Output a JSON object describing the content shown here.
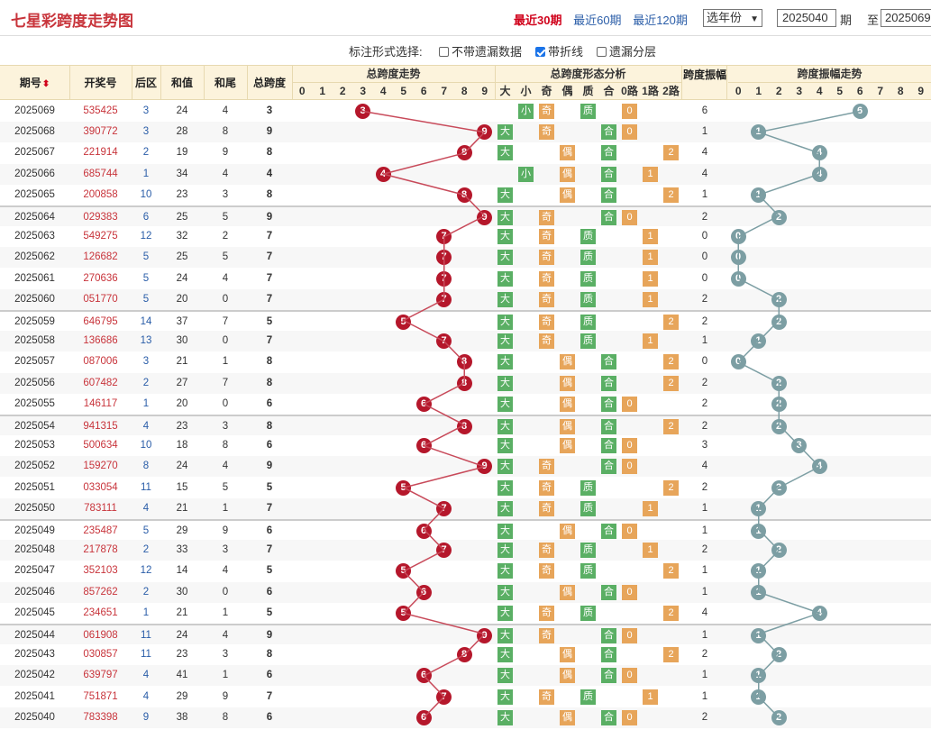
{
  "page_title": "七星彩跨度走势图",
  "period_links": [
    {
      "label": "最近30期",
      "active": true
    },
    {
      "label": "最近60期",
      "active": false
    },
    {
      "label": "最近120期",
      "active": false
    }
  ],
  "year_select": "选年份",
  "range_from": "2025040",
  "range_qi": "期",
  "range_zhi": "至",
  "range_to": "2025069",
  "options_label": "标注形式选择:",
  "options": [
    {
      "label": "不带遗漏数据",
      "checked": false
    },
    {
      "label": "带折线",
      "checked": true
    },
    {
      "label": "遗漏分层",
      "checked": false
    }
  ],
  "headers": {
    "issue": "期号",
    "sort_icon": "sort-arrows-icon",
    "number": "开奖号",
    "back": "后区",
    "sum": "和值",
    "tail": "和尾",
    "span": "总跨度",
    "span_trend": "总跨度走势",
    "shape": "总跨度形态分析",
    "amp": "跨度振幅",
    "amp_trend": "跨度振幅走势",
    "digits": [
      "0",
      "1",
      "2",
      "3",
      "4",
      "5",
      "6",
      "7",
      "8",
      "9"
    ],
    "shape_cols": [
      "大",
      "小",
      "奇",
      "偶",
      "质",
      "合",
      "0路",
      "1路",
      "2路"
    ]
  },
  "rows": [
    {
      "issue": "2025069",
      "number": "535425",
      "back": "3",
      "sum": "24",
      "tail": "4",
      "span": 3,
      "amp": 6
    },
    {
      "issue": "2025068",
      "number": "390772",
      "back": "3",
      "sum": "28",
      "tail": "8",
      "span": 9,
      "amp": 1
    },
    {
      "issue": "2025067",
      "number": "221914",
      "back": "2",
      "sum": "19",
      "tail": "9",
      "span": 8,
      "amp": 4
    },
    {
      "issue": "2025066",
      "number": "685744",
      "back": "1",
      "sum": "34",
      "tail": "4",
      "span": 4,
      "amp": 4
    },
    {
      "issue": "2025065",
      "number": "200858",
      "back": "10",
      "sum": "23",
      "tail": "3",
      "span": 8,
      "amp": 1
    },
    {
      "issue": "2025064",
      "number": "029383",
      "back": "6",
      "sum": "25",
      "tail": "5",
      "span": 9,
      "amp": 2
    },
    {
      "issue": "2025063",
      "number": "549275",
      "back": "12",
      "sum": "32",
      "tail": "2",
      "span": 7,
      "amp": 0
    },
    {
      "issue": "2025062",
      "number": "126682",
      "back": "5",
      "sum": "25",
      "tail": "5",
      "span": 7,
      "amp": 0
    },
    {
      "issue": "2025061",
      "number": "270636",
      "back": "5",
      "sum": "24",
      "tail": "4",
      "span": 7,
      "amp": 0
    },
    {
      "issue": "2025060",
      "number": "051770",
      "back": "5",
      "sum": "20",
      "tail": "0",
      "span": 7,
      "amp": 2
    },
    {
      "issue": "2025059",
      "number": "646795",
      "back": "14",
      "sum": "37",
      "tail": "7",
      "span": 5,
      "amp": 2
    },
    {
      "issue": "2025058",
      "number": "136686",
      "back": "13",
      "sum": "30",
      "tail": "0",
      "span": 7,
      "amp": 1
    },
    {
      "issue": "2025057",
      "number": "087006",
      "back": "3",
      "sum": "21",
      "tail": "1",
      "span": 8,
      "amp": 0
    },
    {
      "issue": "2025056",
      "number": "607482",
      "back": "2",
      "sum": "27",
      "tail": "7",
      "span": 8,
      "amp": 2
    },
    {
      "issue": "2025055",
      "number": "146117",
      "back": "1",
      "sum": "20",
      "tail": "0",
      "span": 6,
      "amp": 2
    },
    {
      "issue": "2025054",
      "number": "941315",
      "back": "4",
      "sum": "23",
      "tail": "3",
      "span": 8,
      "amp": 2
    },
    {
      "issue": "2025053",
      "number": "500634",
      "back": "10",
      "sum": "18",
      "tail": "8",
      "span": 6,
      "amp": 3
    },
    {
      "issue": "2025052",
      "number": "159270",
      "back": "8",
      "sum": "24",
      "tail": "4",
      "span": 9,
      "amp": 4
    },
    {
      "issue": "2025051",
      "number": "033054",
      "back": "11",
      "sum": "15",
      "tail": "5",
      "span": 5,
      "amp": 2
    },
    {
      "issue": "2025050",
      "number": "783111",
      "back": "4",
      "sum": "21",
      "tail": "1",
      "span": 7,
      "amp": 1
    },
    {
      "issue": "2025049",
      "number": "235487",
      "back": "5",
      "sum": "29",
      "tail": "9",
      "span": 6,
      "amp": 1
    },
    {
      "issue": "2025048",
      "number": "217878",
      "back": "2",
      "sum": "33",
      "tail": "3",
      "span": 7,
      "amp": 2
    },
    {
      "issue": "2025047",
      "number": "352103",
      "back": "12",
      "sum": "14",
      "tail": "4",
      "span": 5,
      "amp": 1
    },
    {
      "issue": "2025046",
      "number": "857262",
      "back": "2",
      "sum": "30",
      "tail": "0",
      "span": 6,
      "amp": 1
    },
    {
      "issue": "2025045",
      "number": "234651",
      "back": "1",
      "sum": "21",
      "tail": "1",
      "span": 5,
      "amp": 4
    },
    {
      "issue": "2025044",
      "number": "061908",
      "back": "11",
      "sum": "24",
      "tail": "4",
      "span": 9,
      "amp": 1
    },
    {
      "issue": "2025043",
      "number": "030857",
      "back": "11",
      "sum": "23",
      "tail": "3",
      "span": 8,
      "amp": 2
    },
    {
      "issue": "2025042",
      "number": "639797",
      "back": "4",
      "sum": "41",
      "tail": "1",
      "span": 6,
      "amp": 1
    },
    {
      "issue": "2025041",
      "number": "751871",
      "back": "4",
      "sum": "29",
      "tail": "9",
      "span": 7,
      "amp": 1
    },
    {
      "issue": "2025040",
      "number": "783398",
      "back": "9",
      "sum": "38",
      "tail": "8",
      "span": 6,
      "amp": 2
    }
  ],
  "colors": {
    "span_ball": "#b5172b",
    "amp_ball": "#7c9ea3",
    "header_bg": "#fcf3dc",
    "title": "#c8343b"
  }
}
